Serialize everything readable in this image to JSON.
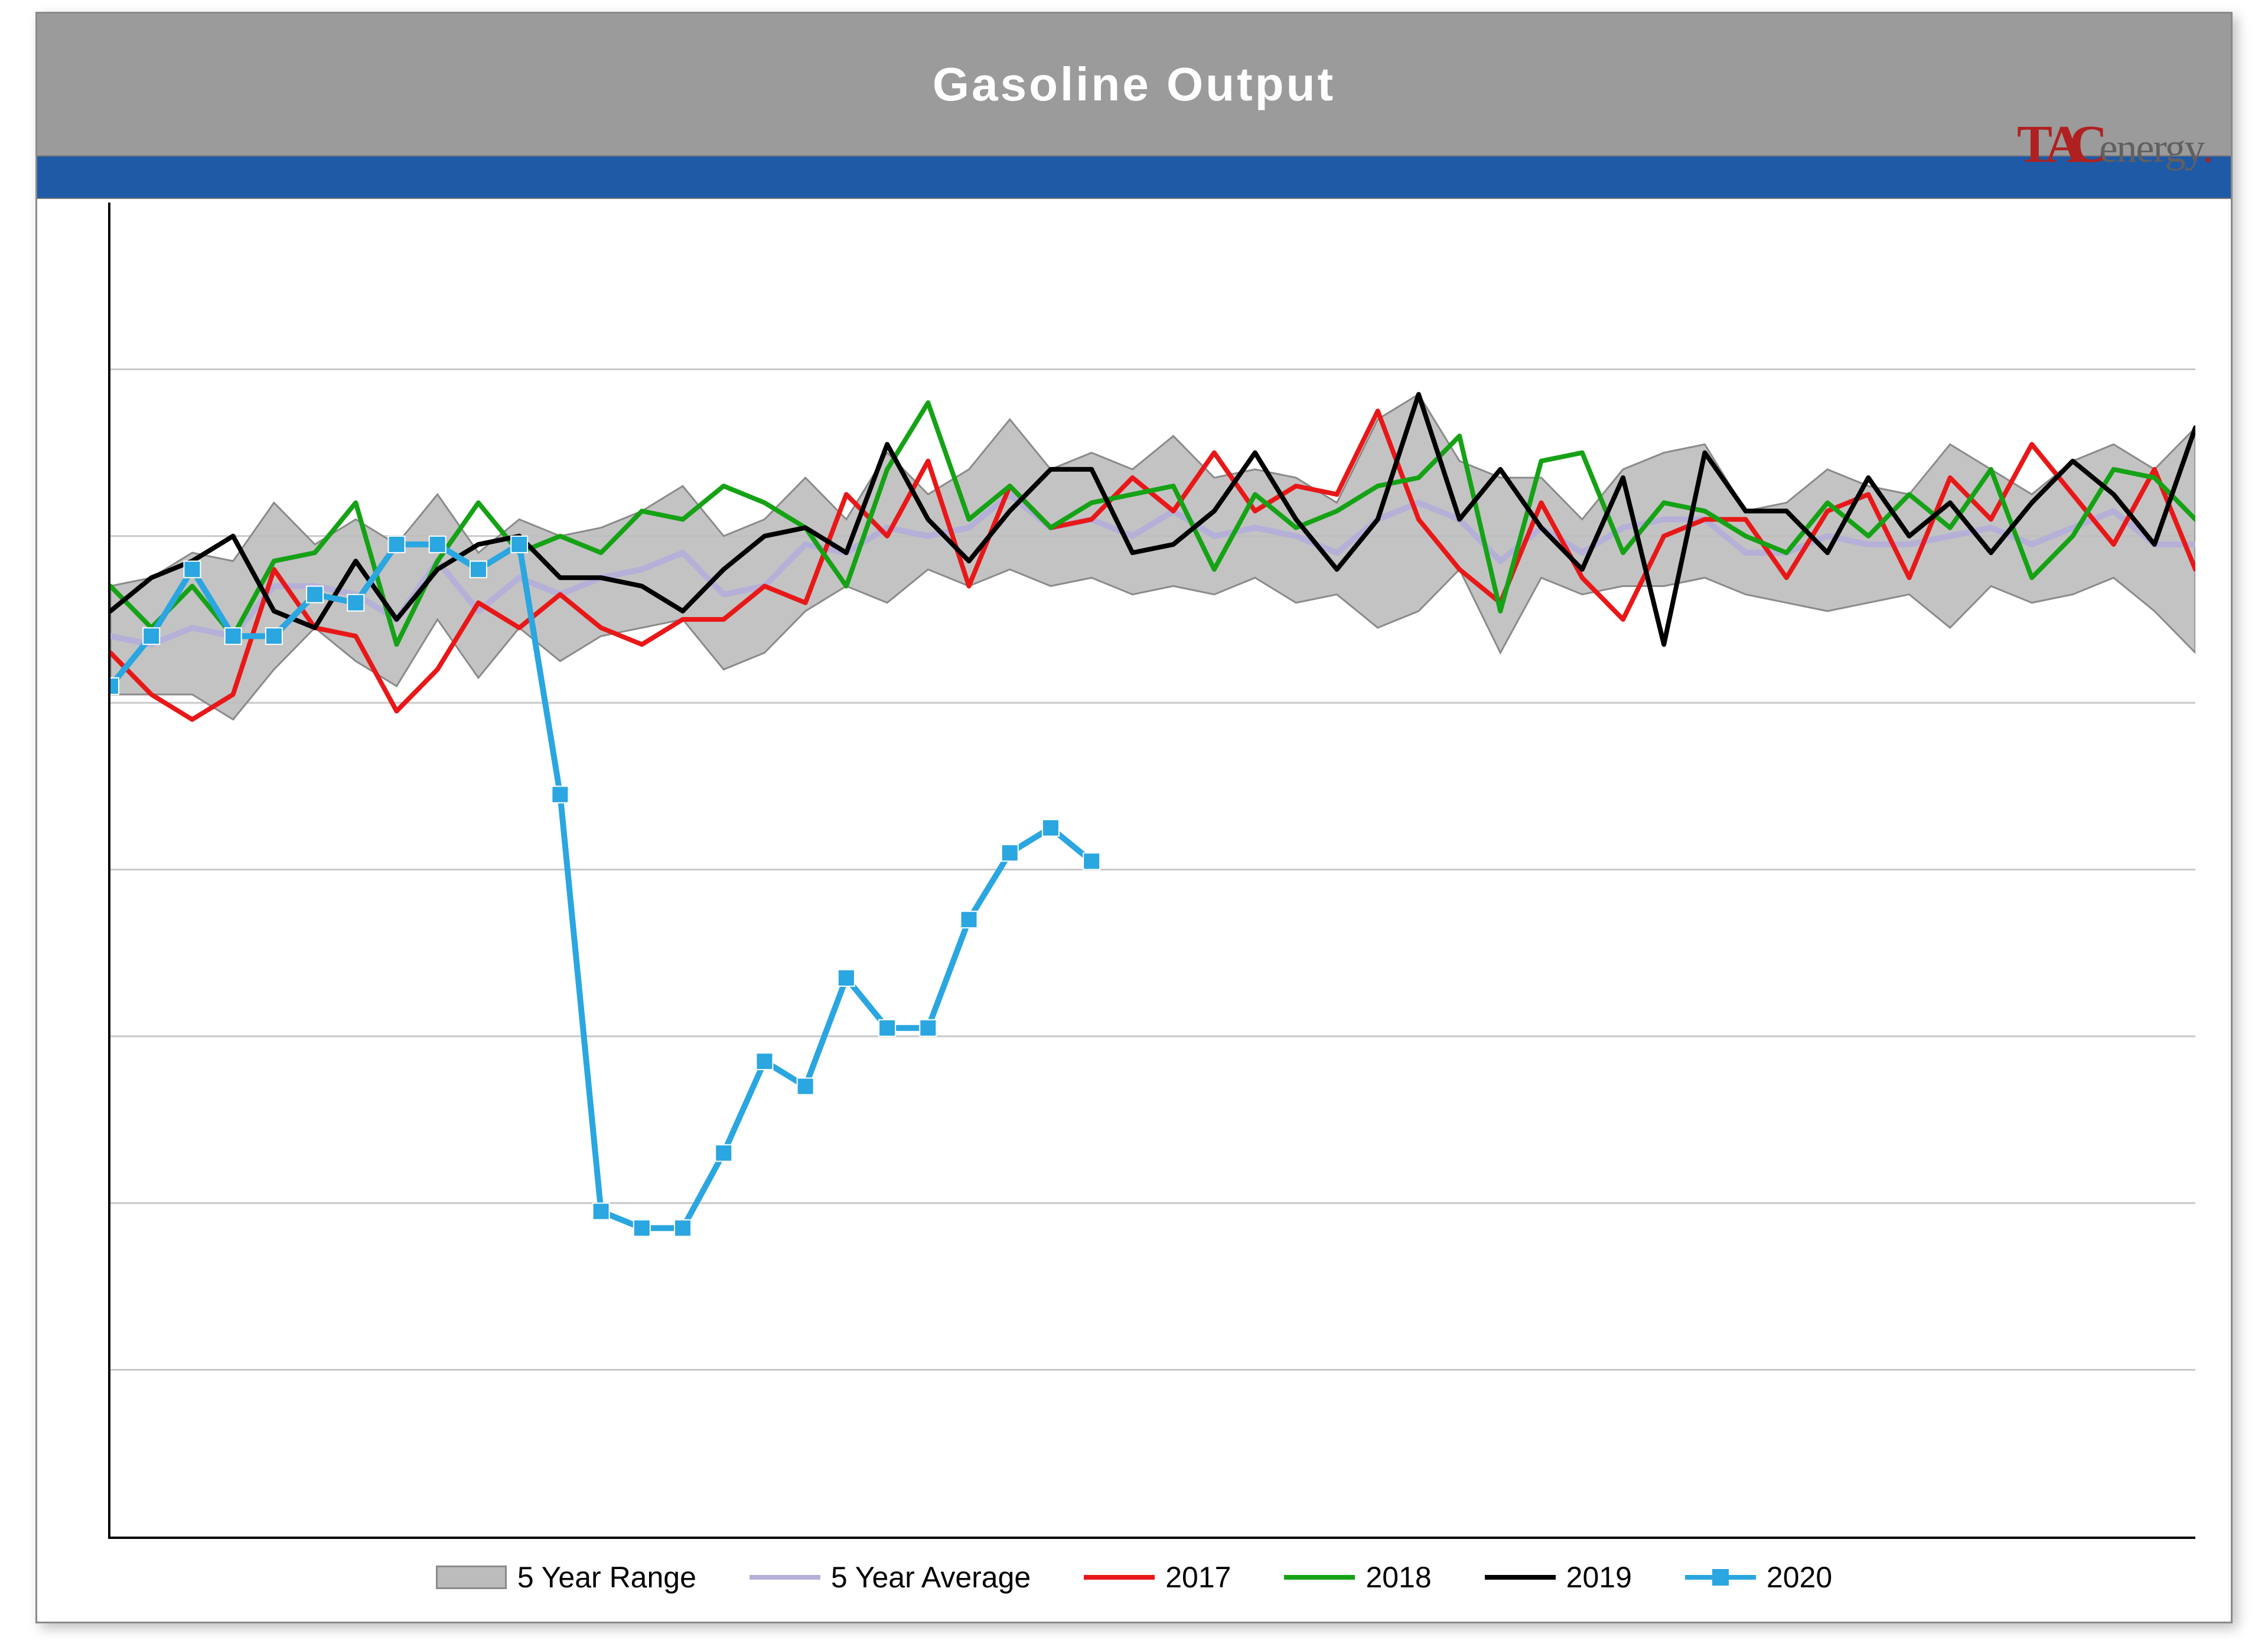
{
  "title": "Gasoline Output",
  "logo": {
    "prefix": "TA",
    "c": "C",
    "suffix": "energy",
    "dot": "."
  },
  "colors": {
    "title_bg": "#9B9B9B",
    "title_text": "#ffffff",
    "blue_strip": "#1f5aa6",
    "axis": "#000000",
    "gridline": "#c8c8c8",
    "range_fill": "#bcbcbc",
    "range_stroke": "#8a8a8a",
    "avg": "#b4b0d8",
    "y2017": "#e81818",
    "y2018": "#15a215",
    "y2019": "#000000",
    "y2020": "#2aa6e0",
    "y2020_marker": "#2aa6e0"
  },
  "chart": {
    "type": "line",
    "y_min": 4000,
    "y_max": 12000,
    "gridlines_y": [
      5000,
      6000,
      7000,
      8000,
      9000,
      10000,
      11000
    ],
    "n_weeks": 52,
    "line_width": 8,
    "range_high": [
      9700,
      9750,
      9900,
      9850,
      10200,
      9950,
      10100,
      9950,
      10250,
      9900,
      10100,
      10000,
      10050,
      10150,
      10300,
      10000,
      10100,
      10350,
      10100,
      10500,
      10250,
      10400,
      10700,
      10400,
      10500,
      10400,
      10600,
      10350,
      10400,
      10350,
      10200,
      10700,
      10850,
      10450,
      10350,
      10350,
      10100,
      10400,
      10500,
      10550,
      10150,
      10200,
      10400,
      10300,
      10250,
      10550,
      10400,
      10250,
      10450,
      10550,
      10400,
      10650
    ],
    "range_low": [
      9050,
      9050,
      9050,
      8900,
      9200,
      9450,
      9250,
      9100,
      9500,
      9150,
      9450,
      9250,
      9400,
      9450,
      9500,
      9200,
      9300,
      9550,
      9700,
      9600,
      9800,
      9700,
      9800,
      9700,
      9750,
      9650,
      9700,
      9650,
      9750,
      9600,
      9650,
      9450,
      9550,
      9800,
      9300,
      9750,
      9650,
      9700,
      9700,
      9750,
      9650,
      9600,
      9550,
      9600,
      9650,
      9450,
      9700,
      9600,
      9650,
      9750,
      9550,
      9300
    ],
    "avg": [
      9400,
      9350,
      9450,
      9400,
      9700,
      9700,
      9650,
      9500,
      9850,
      9550,
      9750,
      9650,
      9750,
      9800,
      9900,
      9650,
      9700,
      9950,
      9900,
      10050,
      10000,
      10050,
      10250,
      10050,
      10100,
      10000,
      10150,
      10000,
      10050,
      10000,
      9900,
      10100,
      10200,
      10100,
      9850,
      10050,
      9900,
      10050,
      10100,
      10100,
      9900,
      9900,
      10000,
      9950,
      9950,
      10000,
      10050,
      9950,
      10050,
      10150,
      9950,
      9950
    ],
    "y2017": [
      9300,
      9050,
      8900,
      9050,
      9800,
      9450,
      9400,
      8950,
      9200,
      9600,
      9450,
      9650,
      9450,
      9350,
      9500,
      9500,
      9700,
      9600,
      10250,
      10000,
      10450,
      9700,
      10300,
      10050,
      10100,
      10350,
      10150,
      10500,
      10150,
      10300,
      10250,
      10750,
      10100,
      9800,
      9600,
      10200,
      9750,
      9500,
      10000,
      10100,
      10100,
      9750,
      10150,
      10250,
      9750,
      10350,
      10100,
      10550,
      10250,
      9950,
      10400,
      9800
    ],
    "y2018": [
      9700,
      9450,
      9700,
      9400,
      9850,
      9900,
      10200,
      9350,
      9850,
      10200,
      9900,
      10000,
      9900,
      10150,
      10100,
      10300,
      10200,
      10050,
      9700,
      10400,
      10800,
      10100,
      10300,
      10050,
      10200,
      10250,
      10300,
      9800,
      10250,
      10050,
      10150,
      10300,
      10350,
      10600,
      9550,
      10450,
      10500,
      9900,
      10200,
      10150,
      10000,
      9900,
      10200,
      10000,
      10250,
      10050,
      10400,
      9750,
      10000,
      10400,
      10350,
      10100
    ],
    "y2019": [
      9550,
      9750,
      9850,
      10000,
      9550,
      9450,
      9850,
      9500,
      9800,
      9950,
      10000,
      9750,
      9750,
      9700,
      9550,
      9800,
      10000,
      10050,
      9900,
      10550,
      10100,
      9850,
      10150,
      10400,
      10400,
      9900,
      9950,
      10150,
      10500,
      10100,
      9800,
      10100,
      10850,
      10100,
      10400,
      10050,
      9800,
      10350,
      9350,
      10500,
      10150,
      10150,
      9900,
      10350,
      10000,
      10200,
      9900,
      10200,
      10450,
      10250,
      9950,
      10650
    ],
    "y2020": [
      9100,
      9400,
      9800,
      9400,
      9400,
      9650,
      9600,
      9950,
      9950,
      9800,
      9950,
      8450,
      5950,
      5850,
      5850,
      6300,
      6850,
      6700,
      7350,
      7050,
      7050,
      7700,
      8100,
      8250,
      8050
    ],
    "y2020_marker_size": 28
  },
  "legend": {
    "range": "5 Year Range",
    "avg": "5 Year Average",
    "y2017": "2017",
    "y2018": "2018",
    "y2019": "2019",
    "y2020": "2020"
  }
}
